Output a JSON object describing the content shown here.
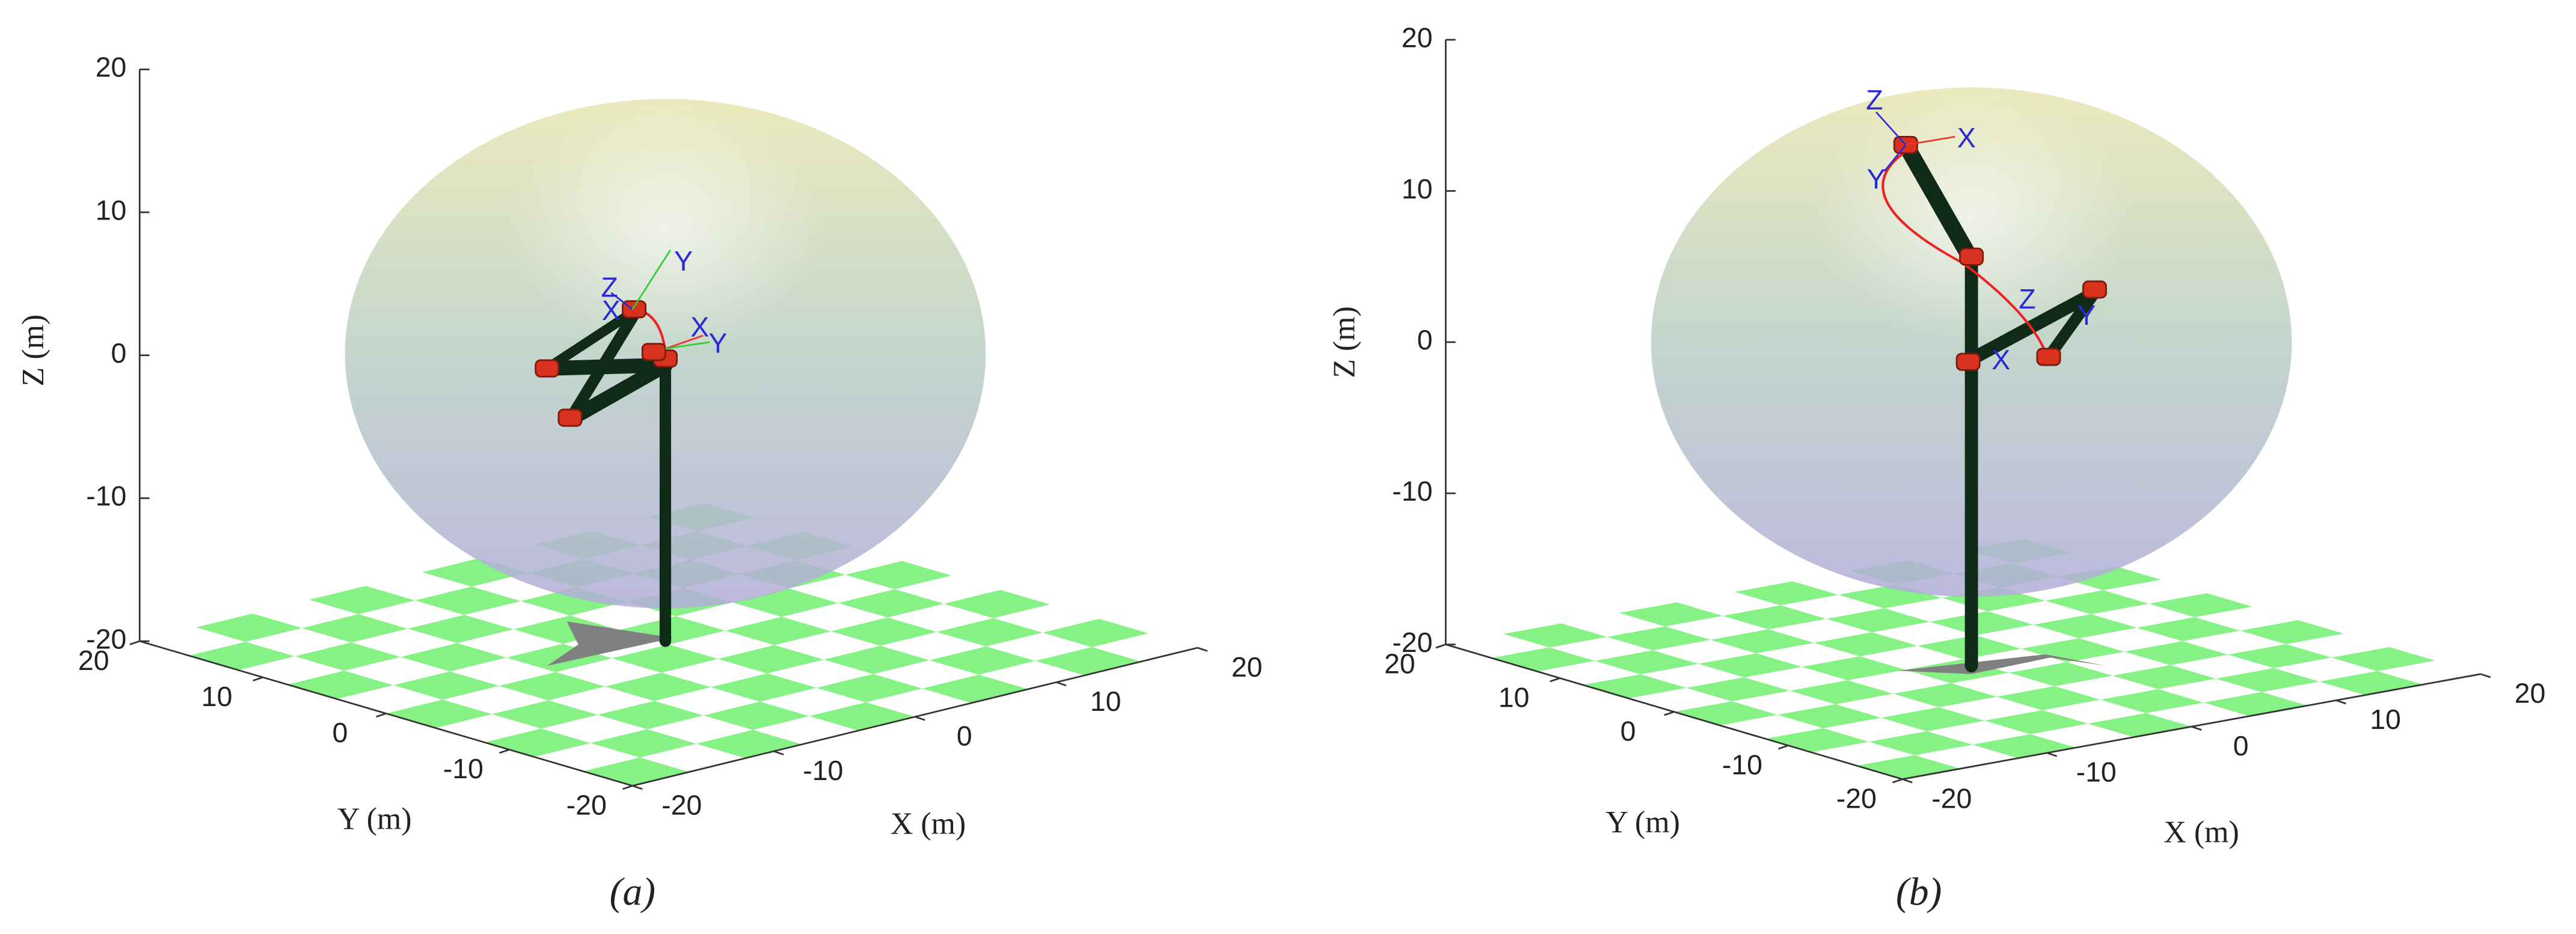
{
  "chart_data": [
    {
      "type": "robot3d",
      "xlabel": "X (m)",
      "ylabel": "Y (m)",
      "zlabel": "Z (m)",
      "caption": "(a)",
      "xlim": [
        -20,
        20
      ],
      "ylim": [
        -20,
        20
      ],
      "zlim": [
        -20,
        20
      ],
      "xticks": [
        -20,
        -10,
        0,
        10,
        20
      ],
      "yticks": [
        -20,
        -10,
        0,
        10,
        20
      ],
      "zticks": [
        -20,
        -10,
        0,
        10,
        20
      ],
      "frame_labels": [
        "Z",
        "X",
        "Y",
        "X",
        "Y"
      ]
    },
    {
      "type": "robot3d",
      "xlabel": "X (m)",
      "ylabel": "Y (m)",
      "zlabel": "Z (m)",
      "caption": "(b)",
      "xlim": [
        -20,
        20
      ],
      "ylim": [
        -20,
        20
      ],
      "zlim": [
        -20,
        20
      ],
      "xticks": [
        -20,
        -10,
        0,
        10,
        20
      ],
      "yticks": [
        -20,
        -10,
        0,
        10,
        20
      ],
      "zticks": [
        -20,
        -10,
        0,
        10,
        20
      ],
      "frame_labels": [
        "Z",
        "X",
        "Y",
        "Z",
        "X",
        "Y"
      ]
    }
  ]
}
